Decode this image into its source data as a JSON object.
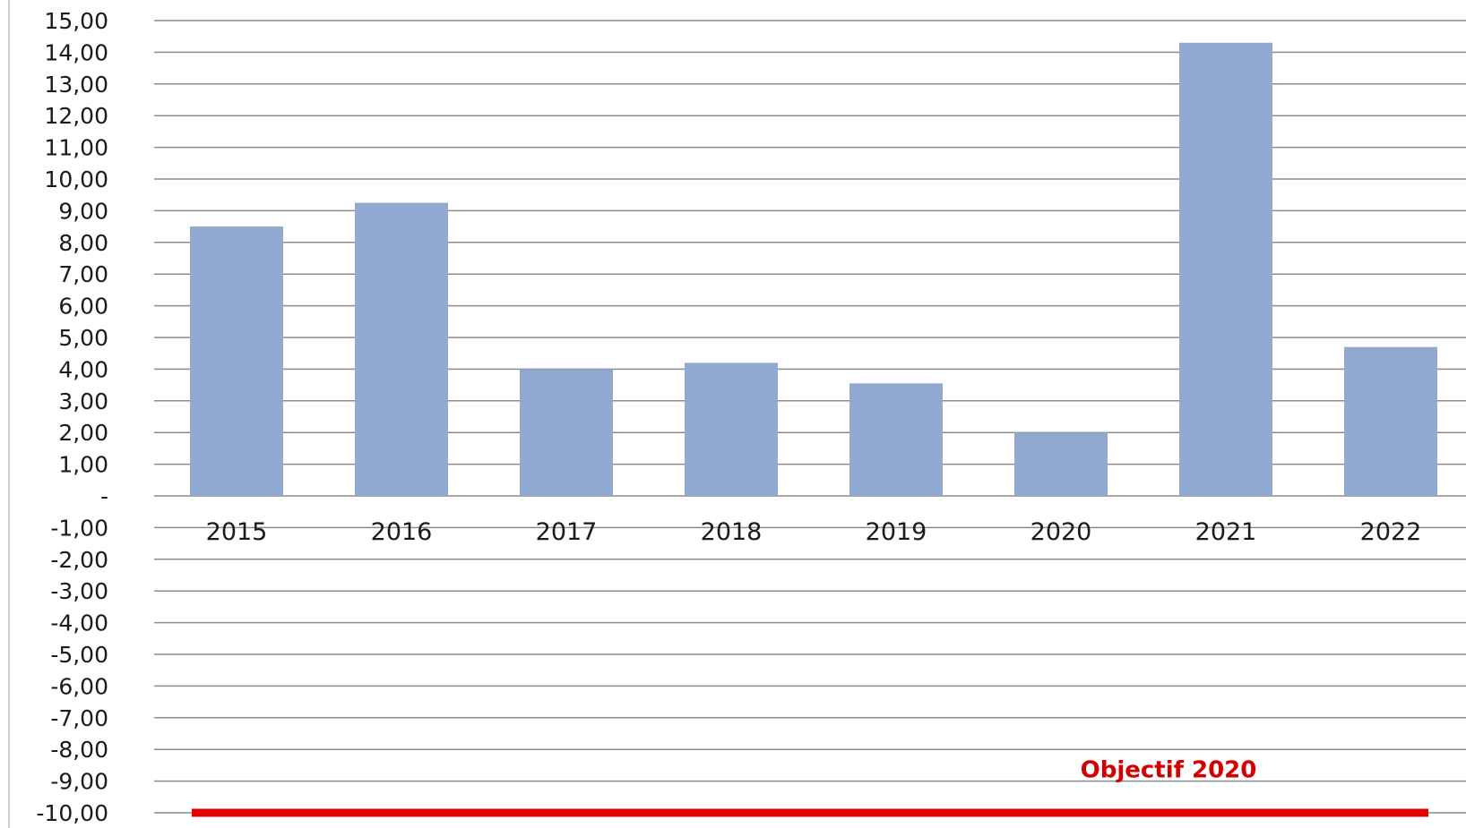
{
  "chart_data": {
    "type": "bar",
    "categories": [
      "2015",
      "2016",
      "2017",
      "2018",
      "2019",
      "2020",
      "2021",
      "2022"
    ],
    "values": [
      8.5,
      9.25,
      4.0,
      4.2,
      3.55,
      2.0,
      14.3,
      4.7
    ],
    "ylim": [
      -10,
      15
    ],
    "yticks": [
      "15,00",
      "14,00",
      "13,00",
      "12,00",
      "11,00",
      "10,00",
      "9,00",
      "8,00",
      "7,00",
      "6,00",
      "5,00",
      "4,00",
      "3,00",
      "2,00",
      "1,00",
      "-",
      "-1,00",
      "-2,00",
      "-3,00",
      "-4,00",
      "-5,00",
      "-6,00",
      "-7,00",
      "-8,00",
      "-9,00",
      "-10,00"
    ],
    "grid": true,
    "bar_color": "#91a8d0",
    "reference_line": {
      "value": -10,
      "label": "Objectif 2020",
      "color": "#e00000"
    }
  }
}
